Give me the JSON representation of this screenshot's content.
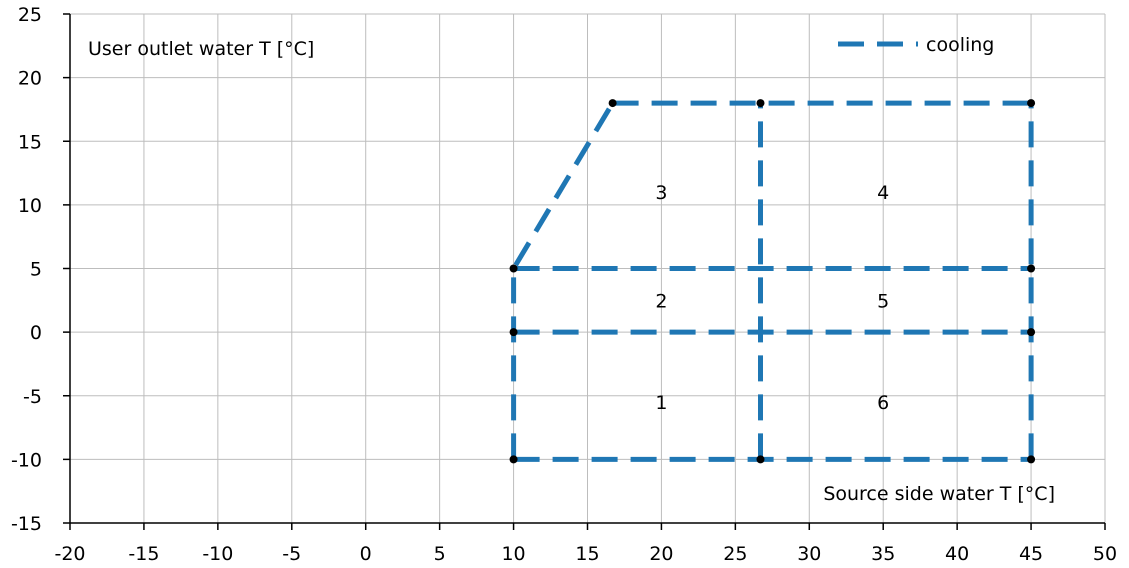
{
  "chart_data": {
    "type": "line",
    "title": "",
    "xlabel": "Source side water T [°C]",
    "ylabel": "User outlet water T [°C]",
    "xlim": [
      -20,
      50
    ],
    "ylim": [
      -15,
      25
    ],
    "x_ticks": [
      -20,
      -15,
      -10,
      -5,
      0,
      5,
      10,
      15,
      20,
      25,
      30,
      35,
      40,
      45,
      50
    ],
    "y_ticks": [
      -15,
      -10,
      -5,
      0,
      5,
      10,
      15,
      20,
      25
    ],
    "grid": true,
    "legend_position": "top-right",
    "series": [
      {
        "name": "cooling",
        "color": "#1f77b4",
        "line_style": "dashed",
        "segments": [
          [
            [
              10,
              -10
            ],
            [
              45,
              -10
            ]
          ],
          [
            [
              10,
              0
            ],
            [
              45,
              0
            ]
          ],
          [
            [
              10,
              5
            ],
            [
              45,
              5
            ]
          ],
          [
            [
              16.7,
              18
            ],
            [
              45,
              18
            ]
          ],
          [
            [
              10,
              -10
            ],
            [
              10,
              5
            ],
            [
              16.7,
              18
            ]
          ],
          [
            [
              26.7,
              -10
            ],
            [
              26.7,
              18
            ]
          ],
          [
            [
              45,
              -10
            ],
            [
              45,
              18
            ]
          ]
        ],
        "vertices": [
          [
            10,
            -10
          ],
          [
            26.7,
            -10
          ],
          [
            45,
            -10
          ],
          [
            10,
            0
          ],
          [
            45,
            0
          ],
          [
            10,
            5
          ],
          [
            45,
            5
          ],
          [
            16.7,
            18
          ],
          [
            26.7,
            18
          ],
          [
            45,
            18
          ]
        ]
      }
    ],
    "annotations": [
      {
        "text": "1",
        "x": 20,
        "y": -5.5
      },
      {
        "text": "2",
        "x": 20,
        "y": 2.5
      },
      {
        "text": "3",
        "x": 20,
        "y": 11
      },
      {
        "text": "4",
        "x": 35,
        "y": 11
      },
      {
        "text": "5",
        "x": 35,
        "y": 2.5
      },
      {
        "text": "6",
        "x": 35,
        "y": -5.5
      }
    ]
  }
}
